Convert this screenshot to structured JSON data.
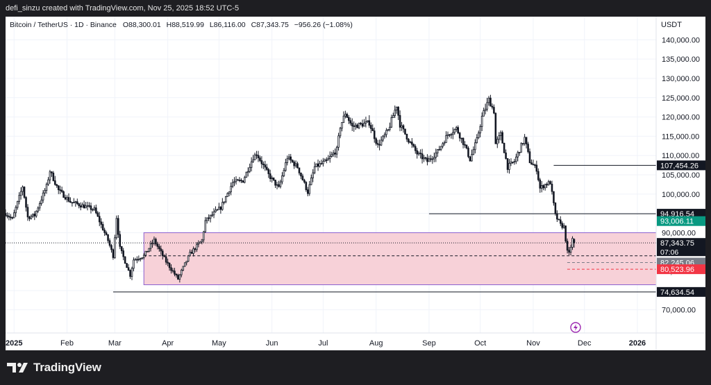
{
  "header": {
    "credit": "defi_sinzu created with TradingView.com, Nov 25, 2025 18:52 UTC-5"
  },
  "legend": {
    "symbol": "Bitcoin / TetherUS · 1D · Binance",
    "o_label": "O",
    "o": "88,300.01",
    "h_label": "H",
    "h": "88,519.99",
    "l_label": "L",
    "l": "86,116.00",
    "c_label": "C",
    "c": "87,343.75",
    "change": "−956.26 (−1.08%)"
  },
  "currency": "USDT",
  "brand": "TradingView",
  "colors": {
    "up": "#131722",
    "down": "#131722",
    "zone_fill": "#f7d1d8",
    "zone_stroke": "#8a5fd0",
    "green": "#089981",
    "red": "#f23645",
    "gray": "#787b86"
  },
  "chart_data": {
    "type": "candlestick",
    "title": "Bitcoin / TetherUS · 1D · Binance",
    "ylim": [
      64000,
      146000
    ],
    "y_ticks": [
      70000,
      75000,
      80000,
      85000,
      90000,
      95000,
      100000,
      105000,
      110000,
      115000,
      120000,
      125000,
      130000,
      135000,
      140000
    ],
    "y_tick_labels": [
      "70,000.00",
      "75,000.00",
      "80,000.00",
      "85,000.00",
      "90,000.00",
      "95,000.00",
      "100,000.00",
      "105,000.00",
      "110,000.00",
      "115,000.00",
      "120,000.00",
      "125,000.00",
      "130,000.00",
      "135,000.00",
      "140,000.00"
    ],
    "x_range": [
      "2024-12-27",
      "2026-01-12"
    ],
    "x_ticks": [
      {
        "date": "2025-01-01",
        "label": "2025"
      },
      {
        "date": "2025-02-01",
        "label": "Feb"
      },
      {
        "date": "2025-03-01",
        "label": "Mar"
      },
      {
        "date": "2025-04-01",
        "label": "Apr"
      },
      {
        "date": "2025-05-01",
        "label": "May"
      },
      {
        "date": "2025-06-01",
        "label": "Jun"
      },
      {
        "date": "2025-07-01",
        "label": "Jul"
      },
      {
        "date": "2025-08-01",
        "label": "Aug"
      },
      {
        "date": "2025-09-01",
        "label": "Sep"
      },
      {
        "date": "2025-10-01",
        "label": "Oct"
      },
      {
        "date": "2025-11-01",
        "label": "Nov"
      },
      {
        "date": "2025-12-01",
        "label": "Dec"
      },
      {
        "date": "2026-01-01",
        "label": "2026"
      }
    ],
    "series": [
      {
        "name": "BTCUSDT",
        "close_path": [
          [
            "2024-12-27",
            95000
          ],
          [
            "2024-12-31",
            93500
          ],
          [
            "2025-01-06",
            102000
          ],
          [
            "2025-01-09",
            94000
          ],
          [
            "2025-01-13",
            94500
          ],
          [
            "2025-01-20",
            102000
          ],
          [
            "2025-01-22",
            106000
          ],
          [
            "2025-01-27",
            101000
          ],
          [
            "2025-02-03",
            98000
          ],
          [
            "2025-02-10",
            97000
          ],
          [
            "2025-02-17",
            96000
          ],
          [
            "2025-02-25",
            88000
          ],
          [
            "2025-02-28",
            84000
          ],
          [
            "2025-03-02",
            94000
          ],
          [
            "2025-03-04",
            86000
          ],
          [
            "2025-03-10",
            79000
          ],
          [
            "2025-03-12",
            83000
          ],
          [
            "2025-03-18",
            84000
          ],
          [
            "2025-03-24",
            88000
          ],
          [
            "2025-03-31",
            82500
          ],
          [
            "2025-04-07",
            78000
          ],
          [
            "2025-04-09",
            80000
          ],
          [
            "2025-04-14",
            84500
          ],
          [
            "2025-04-21",
            88000
          ],
          [
            "2025-04-23",
            93000
          ],
          [
            "2025-04-28",
            95000
          ],
          [
            "2025-05-02",
            96500
          ],
          [
            "2025-05-09",
            103000
          ],
          [
            "2025-05-15",
            103500
          ],
          [
            "2025-05-21",
            109500
          ],
          [
            "2025-05-23",
            110500
          ],
          [
            "2025-05-30",
            105000
          ],
          [
            "2025-06-05",
            101500
          ],
          [
            "2025-06-10",
            109500
          ],
          [
            "2025-06-16",
            107000
          ],
          [
            "2025-06-22",
            100500
          ],
          [
            "2025-06-26",
            107000
          ],
          [
            "2025-07-03",
            108500
          ],
          [
            "2025-07-09",
            111500
          ],
          [
            "2025-07-11",
            117500
          ],
          [
            "2025-07-14",
            121000
          ],
          [
            "2025-07-18",
            117500
          ],
          [
            "2025-07-23",
            118000
          ],
          [
            "2025-07-28",
            118500
          ],
          [
            "2025-08-02",
            112500
          ],
          [
            "2025-08-08",
            116500
          ],
          [
            "2025-08-13",
            123000
          ],
          [
            "2025-08-15",
            118000
          ],
          [
            "2025-08-20",
            114000
          ],
          [
            "2025-08-25",
            110500
          ],
          [
            "2025-08-31",
            108500
          ],
          [
            "2025-09-06",
            111000
          ],
          [
            "2025-09-12",
            115500
          ],
          [
            "2025-09-17",
            117000
          ],
          [
            "2025-09-22",
            112500
          ],
          [
            "2025-09-25",
            109000
          ],
          [
            "2025-09-29",
            114000
          ],
          [
            "2025-10-02",
            120000
          ],
          [
            "2025-10-06",
            124500
          ],
          [
            "2025-10-09",
            121500
          ],
          [
            "2025-10-10",
            113000
          ],
          [
            "2025-10-13",
            115500
          ],
          [
            "2025-10-17",
            107000
          ],
          [
            "2025-10-21",
            108500
          ],
          [
            "2025-10-27",
            114500
          ],
          [
            "2025-10-30",
            108500
          ],
          [
            "2025-11-03",
            106500
          ],
          [
            "2025-11-05",
            101500
          ],
          [
            "2025-11-08",
            102500
          ],
          [
            "2025-11-11",
            103000
          ],
          [
            "2025-11-14",
            94500
          ],
          [
            "2025-11-17",
            92000
          ],
          [
            "2025-11-19",
            91500
          ],
          [
            "2025-11-21",
            85000
          ],
          [
            "2025-11-22",
            84500
          ],
          [
            "2025-11-24",
            88300
          ],
          [
            "2025-11-25",
            87343.75
          ]
        ],
        "last": {
          "date": "2025-11-25",
          "open": 88300.01,
          "high": 88519.99,
          "low": 86116.0,
          "close": 87343.75
        }
      }
    ],
    "annotations": {
      "zone": {
        "from": "2025-03-18",
        "to": "2026-01-12",
        "top": 90000,
        "bottom": 76500
      },
      "dashed_level": {
        "from": "2025-03-18",
        "value": 84000
      },
      "hlines": [
        {
          "from": "2025-02-28",
          "value": 74634.54,
          "label": "74,634.54"
        },
        {
          "from": "2025-09-01",
          "value": 94916.54,
          "label": "94,916.54"
        },
        {
          "from": "2025-11-13",
          "value": 107454.26,
          "label": "107,454.26"
        }
      ],
      "price_tags": [
        {
          "value": 107454.26,
          "label": "107,454.26",
          "style": "black"
        },
        {
          "value": 94916.54,
          "label": "94,916.54",
          "style": "black"
        },
        {
          "value": 93006.11,
          "label": "93,006.11",
          "style": "green"
        },
        {
          "value": 87343.75,
          "label": "87,343.75",
          "sub": "07:06",
          "style": "black"
        },
        {
          "value": 82245.06,
          "label": "82,245.06",
          "style": "gray"
        },
        {
          "value": 80523.96,
          "label": "80,523.96",
          "style": "red"
        },
        {
          "value": 74634.54,
          "label": "74,634.54",
          "style": "black"
        }
      ]
    }
  }
}
